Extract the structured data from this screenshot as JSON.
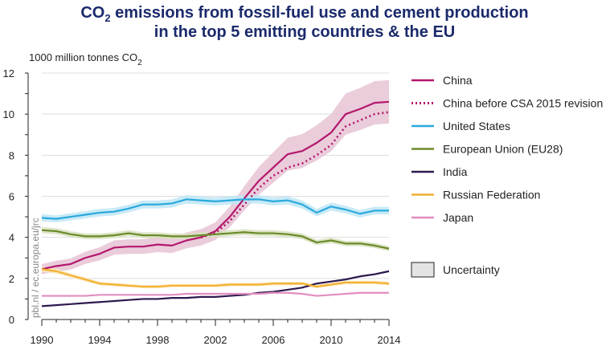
{
  "chart_data": {
    "type": "line",
    "title_line1": "CO",
    "title_sub": "2",
    "title_line1_rest": " emissions from fossil-fuel use and cement production",
    "title_line2": "in the top 5 emitting countries & the EU",
    "ylabel": "1000 million tonnes CO",
    "ylabel_sub": "2",
    "ylim": [
      0,
      12
    ],
    "yticks": [
      "0",
      "2",
      "4",
      "6",
      "8",
      "10",
      "12"
    ],
    "xlim": [
      1990,
      2014
    ],
    "xticks": [
      "1990",
      "1994",
      "1998",
      "2002",
      "2006",
      "2010",
      "2014"
    ],
    "grid": true,
    "legend_position": "right",
    "watermark": "pbl.nl / ec.europa.eu/jrc",
    "uncertainty_label": "Uncertainty",
    "x": [
      1990,
      1991,
      1992,
      1993,
      1994,
      1995,
      1996,
      1997,
      1998,
      1999,
      2000,
      2001,
      2002,
      2003,
      2004,
      2005,
      2006,
      2007,
      2008,
      2009,
      2010,
      2011,
      2012,
      2013,
      2014
    ],
    "series": [
      {
        "name": "China",
        "color": "#b3176c",
        "band": "#e6c3d3",
        "uncertainty": 0.1,
        "dash": false,
        "values": [
          2.45,
          2.6,
          2.7,
          3.0,
          3.2,
          3.5,
          3.55,
          3.55,
          3.65,
          3.6,
          3.85,
          4.0,
          4.3,
          5.0,
          5.9,
          6.75,
          7.4,
          8.05,
          8.2,
          8.6,
          9.1,
          10.0,
          10.25,
          10.55,
          10.6
        ]
      },
      {
        "name": "China before CSA 2015 revision",
        "color": "#b3176c",
        "band": null,
        "uncertainty": 0,
        "dash": true,
        "start": 2001,
        "values": [
          null,
          null,
          null,
          null,
          null,
          null,
          null,
          null,
          null,
          null,
          null,
          4.0,
          4.2,
          4.8,
          5.6,
          6.4,
          7.0,
          7.4,
          7.6,
          8.0,
          8.5,
          9.4,
          9.7,
          10.0,
          10.1
        ]
      },
      {
        "name": "United States",
        "color": "#2aa9dd",
        "band": "#bfe6f6",
        "uncertainty": 0.035,
        "dash": false,
        "values": [
          4.95,
          4.9,
          5.0,
          5.1,
          5.2,
          5.25,
          5.4,
          5.6,
          5.6,
          5.65,
          5.85,
          5.8,
          5.75,
          5.8,
          5.85,
          5.85,
          5.75,
          5.8,
          5.6,
          5.2,
          5.5,
          5.35,
          5.15,
          5.3,
          5.3
        ]
      },
      {
        "name": "European Union (EU28)",
        "color": "#6b8a2a",
        "band": "#d8e1bf",
        "uncertainty": 0.035,
        "dash": false,
        "values": [
          4.35,
          4.3,
          4.15,
          4.05,
          4.05,
          4.1,
          4.2,
          4.1,
          4.1,
          4.05,
          4.05,
          4.1,
          4.15,
          4.2,
          4.25,
          4.2,
          4.2,
          4.15,
          4.05,
          3.75,
          3.85,
          3.7,
          3.7,
          3.6,
          3.45
        ]
      },
      {
        "name": "India",
        "color": "#2e1a4f",
        "band": "#d0cbd9",
        "uncertainty": 0.02,
        "dash": false,
        "values": [
          0.65,
          0.7,
          0.75,
          0.8,
          0.85,
          0.9,
          0.95,
          1.0,
          1.0,
          1.05,
          1.05,
          1.1,
          1.1,
          1.15,
          1.2,
          1.3,
          1.35,
          1.45,
          1.55,
          1.75,
          1.85,
          1.95,
          2.1,
          2.2,
          2.35
        ]
      },
      {
        "name": "Russian Federation",
        "color": "#f2b133",
        "band": "#fbe6b8",
        "uncertainty": 0.05,
        "dash": false,
        "values": [
          2.45,
          2.35,
          2.15,
          1.95,
          1.75,
          1.7,
          1.65,
          1.6,
          1.6,
          1.65,
          1.65,
          1.65,
          1.65,
          1.7,
          1.7,
          1.7,
          1.75,
          1.75,
          1.75,
          1.6,
          1.7,
          1.8,
          1.8,
          1.8,
          1.75
        ]
      },
      {
        "name": "Japan",
        "color": "#e38dc0",
        "band": "#f6dcea",
        "uncertainty": 0.02,
        "dash": false,
        "values": [
          1.15,
          1.15,
          1.15,
          1.15,
          1.2,
          1.2,
          1.2,
          1.2,
          1.2,
          1.2,
          1.25,
          1.25,
          1.25,
          1.25,
          1.25,
          1.25,
          1.3,
          1.3,
          1.25,
          1.15,
          1.2,
          1.25,
          1.3,
          1.3,
          1.3
        ]
      }
    ]
  }
}
